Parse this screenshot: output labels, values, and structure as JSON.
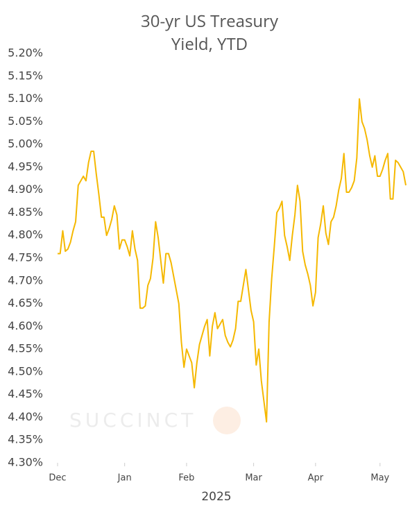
{
  "chart_data": {
    "type": "line",
    "title": "30-yr US Treasury Yield, YTD",
    "xlabel": "2025",
    "watermark": "SUCCINCT",
    "categories": [
      "Dec",
      null,
      null,
      null,
      null,
      null,
      null,
      null,
      null,
      null,
      null,
      null,
      null,
      null,
      null,
      null,
      null,
      null,
      null,
      null,
      null,
      null,
      null,
      null,
      null,
      null,
      "Jan",
      null,
      null,
      null,
      null,
      null,
      null,
      null,
      null,
      null,
      null,
      null,
      null,
      null,
      null,
      null,
      null,
      null,
      null,
      null,
      null,
      null,
      null,
      null,
      "Feb",
      null,
      null,
      null,
      null,
      null,
      null,
      null,
      null,
      null,
      null,
      null,
      null,
      null,
      null,
      null,
      null,
      null,
      null,
      null,
      null,
      null,
      null,
      null,
      null,
      null,
      "Mar",
      null,
      null,
      null,
      null,
      null,
      null,
      null,
      null,
      null,
      null,
      null,
      null,
      null,
      null,
      null,
      null,
      null,
      null,
      null,
      null,
      null,
      null,
      null,
      "Apr",
      null,
      null,
      null,
      null,
      null,
      null,
      null,
      null,
      null,
      null,
      null,
      null,
      null,
      null,
      null,
      null,
      null,
      null,
      null,
      null,
      null,
      null,
      null,
      null,
      "May",
      null,
      null,
      null,
      null,
      null,
      null,
      null,
      null,
      null,
      null
    ],
    "series": [
      {
        "color": "#f5b800",
        "values": [
          4.76,
          4.76,
          4.81,
          4.765,
          4.77,
          4.785,
          4.81,
          4.83,
          4.91,
          4.92,
          4.93,
          4.92,
          4.96,
          4.985,
          4.985,
          4.935,
          4.89,
          4.84,
          4.84,
          4.8,
          4.815,
          4.835,
          4.865,
          4.845,
          4.77,
          4.79,
          4.79,
          4.775,
          4.755,
          4.81,
          4.77,
          4.745,
          4.64,
          4.64,
          4.645,
          4.69,
          4.705,
          4.75,
          4.83,
          4.795,
          4.745,
          4.695,
          4.76,
          4.76,
          4.74,
          4.71,
          4.68,
          4.65,
          4.565,
          4.51,
          4.55,
          4.535,
          4.52,
          4.465,
          4.52,
          4.56,
          4.58,
          4.6,
          4.615,
          4.535,
          4.6,
          4.63,
          4.595,
          4.605,
          4.615,
          4.58,
          4.565,
          4.555,
          4.57,
          4.595,
          4.655,
          4.655,
          4.69,
          4.725,
          4.68,
          4.635,
          4.61,
          4.515,
          4.55,
          4.48,
          4.435,
          4.39,
          4.61,
          4.705,
          4.775,
          4.85,
          4.86,
          4.875,
          4.8,
          4.775,
          4.745,
          4.8,
          4.845,
          4.91,
          4.875,
          4.765,
          4.735,
          4.715,
          4.69,
          4.645,
          4.675,
          4.795,
          4.825,
          4.865,
          4.805,
          4.78,
          4.83,
          4.84,
          4.865,
          4.9,
          4.925,
          4.98,
          4.895,
          4.895,
          4.905,
          4.92,
          4.97,
          5.1,
          5.05,
          5.035,
          5.01,
          4.975,
          4.95,
          4.975,
          4.93,
          4.93,
          4.945,
          4.965,
          4.98,
          4.88,
          4.88,
          4.965,
          4.96,
          4.95,
          4.94,
          4.91
        ]
      }
    ],
    "ylim": [
      4.3,
      5.2
    ],
    "yticks": [
      {
        "value": 4.3,
        "label": "4.30%"
      },
      {
        "value": 4.35,
        "label": "4.35%"
      },
      {
        "value": 4.4,
        "label": "4.40%"
      },
      {
        "value": 4.45,
        "label": "4.45%"
      },
      {
        "value": 4.5,
        "label": "4.50%"
      },
      {
        "value": 4.55,
        "label": "4.55%"
      },
      {
        "value": 4.6,
        "label": "4.60%"
      },
      {
        "value": 4.65,
        "label": "4.65%"
      },
      {
        "value": 4.7,
        "label": "4.70%"
      },
      {
        "value": 4.75,
        "label": "4.75%"
      },
      {
        "value": 4.8,
        "label": "4.80%"
      },
      {
        "value": 4.85,
        "label": "4.85%"
      },
      {
        "value": 4.9,
        "label": "4.90%"
      },
      {
        "value": 4.95,
        "label": "4.95%"
      },
      {
        "value": 5.0,
        "label": "5.00%"
      },
      {
        "value": 5.05,
        "label": "5.05%"
      },
      {
        "value": 5.1,
        "label": "5.10%"
      },
      {
        "value": 5.15,
        "label": "5.15%"
      },
      {
        "value": 5.2,
        "label": "5.20%"
      }
    ],
    "grid": false
  }
}
